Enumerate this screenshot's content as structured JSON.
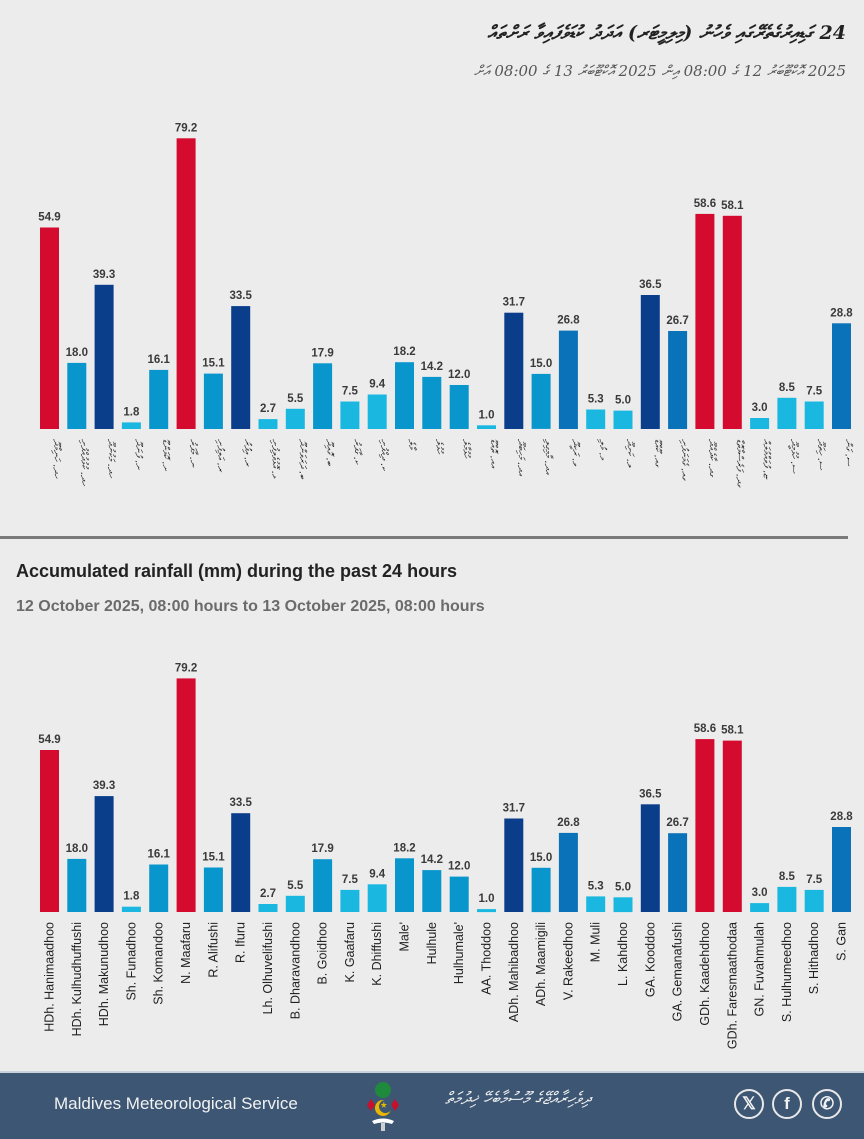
{
  "header_dv": {
    "title": "24 ގަޑިއިރުގެތެރޭގައި ވެހުނު (މިލިމީޓަރ) އަދަދު ކުޑަވެފައިވާ ރަށްތައް",
    "subtitle": "2025 އޮކްޓޫބަރު 12 ގެ 08:00 އިން 2025 އޮކްޓޫބަރު 13 ގެ 08:00 އަށް"
  },
  "header_en": {
    "title": "Accumulated rainfall (mm) during the past 24 hours",
    "subtitle": "12 October 2025, 08:00 hours to 13 October 2025, 08:00 hours"
  },
  "footer": {
    "org_name": "Maldives Meteorological Service",
    "org_name_dv": "ދިވެހިރާއްޖޭގެ މޫސުމާބެހޭ ޚިދުމަތް",
    "icons": [
      "x-icon",
      "facebook-icon",
      "viber-icon"
    ],
    "icon_glyphs": [
      "𝕏",
      "f",
      "✆"
    ]
  },
  "colors": {
    "background": "#ececec",
    "band_ge50": "#d40a2e",
    "band_30_50": "#0a3d8a",
    "band_20_30": "#0a72b8",
    "band_10_20": "#0996cc",
    "band_lt10": "#1ab8e0",
    "footer_bg": "#3c5673"
  },
  "chart_data": [
    {
      "type": "bar",
      "title": "24 ގަޑިއިރުގެތެރޭގައި ވެހުނު (މިލިމީޓަރ) އަދަދު",
      "language": "dv",
      "categories": [
        "ހދ. ހަނިމާދޫ",
        "ހދ. ކުޅުދުއްފުށި",
        "ހދ. މަކުނުދޫ",
        "ށ. ފުނަދޫ",
        "ށ. ކޮމަންޑޫ",
        "ނ. މާފަރު",
        "ރ. އަލިފުށި",
        "ރ. އިފުރު",
        "ޅ. އޮޅުވެލިފުށި",
        "ބ. ދަރަވަންދޫ",
        "ބ. ގޮއިދޫ",
        "ކ. ގާފަރު",
        "ކ. ދިއްފުށި",
        "މާލެ",
        "ހުޅުލެ",
        "ހުޅުމާލެ",
        "އއ. ތޮއްޑޫ",
        "އދ. މަހިބަދޫ",
        "އދ. މާމިގިލި",
        "ވ. ރަކީދޫ",
        "މ. މުލި",
        "ލ. ކަށިދޫ",
        "ގއ. ކޫއްޑޫ",
        "ގއ. ގެމަނަފުށި",
        "ގދ. ކާދެއްދޫ",
        "ގދ. ފަރެސްމާތޮޑާ",
        "ޏ. ފުވައްމުލައް",
        "ސ. ހުޅުމީދޫ",
        "ސ. ހިތަދޫ",
        "ސ. ގަން"
      ],
      "values": [
        54.9,
        18.0,
        39.3,
        1.8,
        16.1,
        79.2,
        15.1,
        33.5,
        2.7,
        5.5,
        17.9,
        7.5,
        9.4,
        18.2,
        14.2,
        12.0,
        1.0,
        31.7,
        15.0,
        26.8,
        5.3,
        5.0,
        36.5,
        26.7,
        58.6,
        58.1,
        3.0,
        8.5,
        7.5,
        28.8
      ],
      "xlabel": "",
      "ylabel": "",
      "ylim": [
        0,
        80
      ],
      "grid": false,
      "legend": "none",
      "data_labels": true
    },
    {
      "type": "bar",
      "title": "Accumulated rainfall (mm) during the past 24 hours",
      "subtitle": "12 October 2025, 08:00 hours to 13 October 2025, 08:00 hours",
      "language": "en",
      "categories": [
        "HDh. Hanimaadhoo",
        "HDh. Kulhudhuffushi",
        "HDh. Makunudhoo",
        "Sh. Funadhoo",
        "Sh. Komandoo",
        "N. Maafaru",
        "R. Alifushi",
        "R. Ifuru",
        "Lh. Olhuvelifushi",
        "B. Dharavandhoo",
        "B. Goidhoo",
        "K. Gaafaru",
        "K. Dhiffushi",
        "Male'",
        "Hulhule",
        "Hulhumale'",
        "AA. Thoddoo",
        "ADh. Mahibadhoo",
        "ADh. Maamigili",
        "V. Rakeedhoo",
        "M. Muli",
        "L. Kahdhoo",
        "GA. Kooddoo",
        "GA. Gemanafushi",
        "GDh. Kaadehdhoo",
        "GDh. Faresmaathodaa",
        "GN. Fuvahmulah",
        "S. Hulhumeedhoo",
        "S. Hithadhoo",
        "S. Gan"
      ],
      "values": [
        54.9,
        18.0,
        39.3,
        1.8,
        16.1,
        79.2,
        15.1,
        33.5,
        2.7,
        5.5,
        17.9,
        7.5,
        9.4,
        18.2,
        14.2,
        12.0,
        1.0,
        31.7,
        15.0,
        26.8,
        5.3,
        5.0,
        36.5,
        26.7,
        58.6,
        58.1,
        3.0,
        8.5,
        7.5,
        28.8
      ],
      "xlabel": "",
      "ylabel": "",
      "ylim": [
        0,
        80
      ],
      "grid": false,
      "legend": "none",
      "data_labels": true
    }
  ]
}
